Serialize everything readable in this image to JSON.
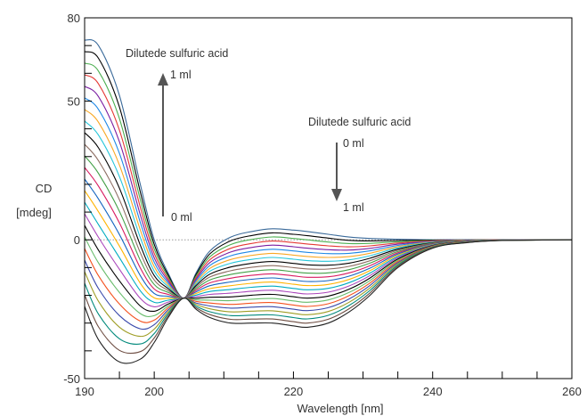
{
  "chart_data": {
    "type": "line",
    "title": "",
    "xlabel": "Wavelength [nm]",
    "ylabel_lines": [
      "CD",
      "[mdeg]"
    ],
    "xlim": [
      190,
      260
    ],
    "ylim": [
      -50,
      80
    ],
    "x_ticks": [
      190,
      200,
      220,
      240,
      260
    ],
    "y_ticks": [
      -50,
      0,
      50,
      80
    ],
    "grid": false,
    "zero_line": true,
    "annotations": [
      {
        "id": "up_title",
        "text": "Dilutede sulfuric acid"
      },
      {
        "id": "up_top",
        "text": "1 ml"
      },
      {
        "id": "up_bottom",
        "text": "0 ml"
      },
      {
        "id": "down_title",
        "text": "Dilutede sulfuric acid"
      },
      {
        "id": "down_top",
        "text": "0 ml"
      },
      {
        "id": "down_bottom",
        "text": "1 ml"
      }
    ],
    "series_count": 24,
    "series_colors": [
      "#3a6a9a",
      "#000000",
      "#4caf50",
      "#e53935",
      "#7b1fa2",
      "#1e88e5",
      "#f9a825",
      "#26c6da",
      "#000000",
      "#8d6e63",
      "#43a047",
      "#d81b60",
      "#1565c0",
      "#ffb300",
      "#00acc1",
      "#ab47bc",
      "#000000",
      "#66bb6a",
      "#f4511e",
      "#3949ab",
      "#9e9d24",
      "#00897b",
      "#6d4c41",
      "#222222"
    ],
    "series": [
      {
        "name": "",
        "x": [
          190,
          192,
          195,
          198,
          200,
          202,
          204.2,
          206,
          208,
          211,
          214,
          217,
          220,
          222,
          225,
          228,
          231,
          235,
          240,
          245,
          250,
          260
        ],
        "y": [
          72,
          70,
          52,
          20,
          0,
          -12,
          -21,
          -12,
          -4,
          1,
          3,
          4,
          3.5,
          3,
          2,
          1,
          0.5,
          0.2,
          0,
          0,
          0,
          0
        ]
      },
      {
        "name": "",
        "x": [
          190,
          192,
          195,
          198,
          200,
          202,
          204.2,
          206,
          208,
          211,
          214,
          217,
          220,
          222,
          225,
          228,
          231,
          235,
          240,
          245,
          250,
          260
        ],
        "y": [
          -24,
          -36,
          -44,
          -43,
          -37,
          -28,
          -21,
          -25,
          -28,
          -30,
          -30,
          -30,
          -31,
          -31.5,
          -30,
          -26,
          -20,
          -10,
          -3,
          -1,
          -0.2,
          0
        ]
      }
    ]
  }
}
